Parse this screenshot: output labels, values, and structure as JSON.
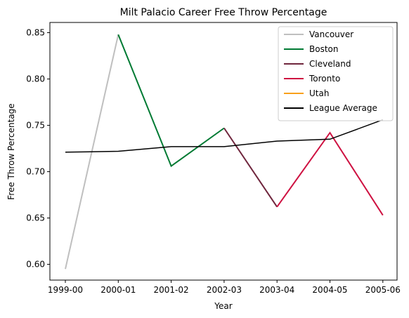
{
  "chart_data": {
    "type": "line",
    "title": "Milt Palacio Career Free Throw Percentage",
    "xlabel": "Year",
    "ylabel": "Free Throw Percentage",
    "categories": [
      "1999-00",
      "2000-01",
      "2001-02",
      "2002-03",
      "2003-04",
      "2004-05",
      "2005-06"
    ],
    "ylim": [
      0.583,
      0.861
    ],
    "yticks": [
      0.6,
      0.65,
      0.7,
      0.75,
      0.8,
      0.85
    ],
    "ytick_labels": [
      "0.60",
      "0.65",
      "0.70",
      "0.75",
      "0.80",
      "0.85"
    ],
    "grid": false,
    "legend_position": "top-right",
    "series": [
      {
        "name": "Vancouver",
        "color": "#bfbfbf",
        "points": [
          [
            0,
            0.595
          ],
          [
            1,
            0.848
          ]
        ]
      },
      {
        "name": "Boston",
        "color": "#007a33",
        "points": [
          [
            1,
            0.848
          ],
          [
            2,
            0.706
          ],
          [
            3,
            0.747
          ]
        ]
      },
      {
        "name": "Cleveland",
        "color": "#6f263d",
        "points": [
          [
            3,
            0.747
          ],
          [
            4,
            0.662
          ]
        ]
      },
      {
        "name": "Toronto",
        "color": "#ce1141",
        "points": [
          [
            4,
            0.662
          ],
          [
            5,
            0.742
          ],
          [
            6,
            0.653
          ]
        ]
      },
      {
        "name": "Utah",
        "color": "#f9a01b",
        "points": []
      },
      {
        "name": "League Average",
        "color": "#000000",
        "points": [
          [
            0,
            0.721
          ],
          [
            1,
            0.722
          ],
          [
            2,
            0.727
          ],
          [
            3,
            0.727
          ],
          [
            4,
            0.733
          ],
          [
            5,
            0.735
          ],
          [
            6,
            0.756
          ]
        ]
      }
    ]
  }
}
